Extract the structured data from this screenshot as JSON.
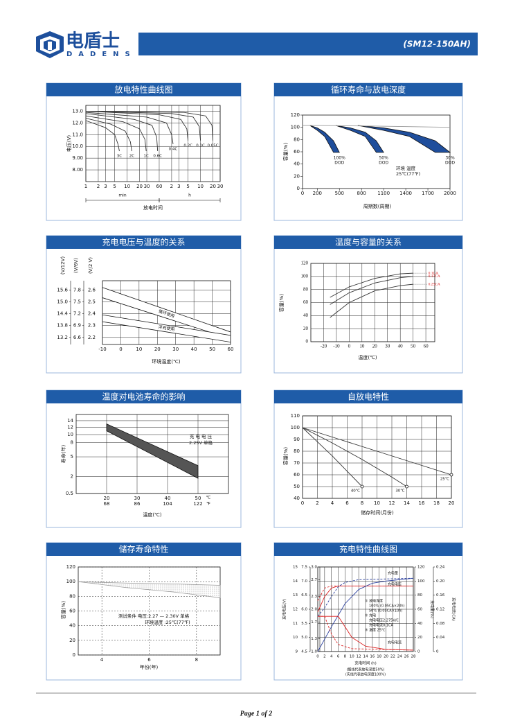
{
  "header": {
    "brand": "电盾士",
    "brand_en": "DADENS",
    "model": "(SM12-150AH)"
  },
  "panels": [
    {
      "title": "放电特性曲线图",
      "chart": {
        "type": "line",
        "ylabel": "电压(V)",
        "xlabel": "放电时间",
        "xscale": "log",
        "xlim": [
          1,
          1800
        ],
        "ylim": [
          7,
          13.5
        ],
        "grid": true,
        "color": "#333",
        "xunits": [
          "min",
          "h"
        ],
        "xticks": [
          1,
          2,
          3,
          5,
          10,
          20,
          30,
          60,
          {
            "value": 120,
            "label": "2"
          },
          {
            "value": 180,
            "label": "3"
          },
          {
            "value": 300,
            "label": "5"
          },
          {
            "value": 600,
            "label": "10"
          },
          {
            "value": 1200,
            "label": "20"
          },
          {
            "value": 1800,
            "label": "30"
          }
        ],
        "yticks": [
          {
            "value": 13,
            "label": "13.0"
          },
          {
            "value": 12,
            "label": "12.0"
          },
          {
            "value": 11,
            "label": "11.0"
          },
          {
            "value": 10,
            "label": "10.0"
          },
          {
            "value": 9,
            "label": "9.00"
          },
          {
            "value": 8,
            "label": "8.00"
          }
        ],
        "series": [
          {
            "name": "3C",
            "x": [
              1,
              3,
              5,
              6,
              6.5
            ],
            "values": [
              12.2,
              11.6,
              11.0,
              10.2,
              9.6
            ]
          },
          {
            "name": "2C",
            "x": [
              1,
              4,
              9,
              12,
              13
            ],
            "values": [
              12.4,
              11.9,
              11.3,
              10.4,
              9.6
            ]
          },
          {
            "name": "1C",
            "x": [
              1,
              8,
              20,
              27,
              29
            ],
            "values": [
              12.6,
              12.1,
              11.5,
              10.6,
              9.6
            ]
          },
          {
            "name": "0.6C",
            "x": [
              1,
              15,
              40,
              52,
              55
            ],
            "values": [
              12.8,
              12.3,
              11.8,
              10.8,
              9.6
            ]
          },
          {
            "name": "0.4C",
            "x": [
              1,
              30,
              90,
              120,
              130
            ],
            "values": [
              12.9,
              12.5,
              12.0,
              11.0,
              10.2
            ]
          },
          {
            "name": "0.2C",
            "x": [
              1,
              60,
              200,
              280,
              300
            ],
            "values": [
              13.0,
              12.7,
              12.3,
              11.5,
              10.5
            ]
          },
          {
            "name": "0.1C",
            "x": [
              1,
              120,
              400,
              560,
              600
            ],
            "values": [
              13.0,
              12.8,
              12.5,
              11.7,
              10.5
            ]
          },
          {
            "name": "0.05C",
            "x": [
              1,
              240,
              800,
              1140,
              1200
            ],
            "values": [
              13.0,
              12.9,
              12.6,
              11.8,
              10.5
            ]
          }
        ]
      }
    },
    {
      "title": "循环寿命与放电深度",
      "chart": {
        "type": "line",
        "ylabel": "容量(%)",
        "xlabel": "周期数(周期)",
        "xlim": [
          0,
          2000
        ],
        "ylim": [
          0,
          120
        ],
        "grid": false,
        "color": "#999",
        "xticks": [
          0,
          200,
          500,
          800,
          1100,
          1400,
          1700,
          2000
        ],
        "yticks": [
          0,
          20,
          40,
          60,
          80,
          100,
          120
        ],
        "notes": [
          "环境 温度",
          "25℃(77℉)"
        ],
        "series": [
          {
            "x": [
              0,
              200,
              1000,
              2000
            ],
            "values": [
              103,
              103,
              102,
              100
            ]
          }
        ],
        "bands": [
          {
            "label": [
              "100%",
              "DOD"
            ],
            "color": "#1f4e9c",
            "x": [
              100,
              200,
              300,
              420,
              500
            ],
            "upper": [
              103,
              99,
              92,
              78,
              59
            ],
            "lower": [
              103,
              95,
              85,
              59,
              59
            ]
          },
          {
            "label": [
              "50%",
              "DOD"
            ],
            "color": "#1f4e9c",
            "x": [
              450,
              650,
              850,
              1000,
              1100
            ],
            "upper": [
              103,
              99,
              92,
              78,
              59
            ],
            "lower": [
              103,
              95,
              85,
              59,
              59
            ]
          },
          {
            "label": [
              "30%",
              "DOD"
            ],
            "color": "#1f4e9c",
            "x": [
              750,
              1100,
              1450,
              1800,
              2000
            ],
            "upper": [
              103,
              99,
              92,
              78,
              59
            ],
            "lower": [
              103,
              95,
              85,
              59,
              59
            ]
          }
        ]
      }
    },
    {
      "title": "充电电压与温度的关系",
      "chart": {
        "type": "line",
        "ylabel": "(V/2 V)",
        "xlabel": "环境温度(℃)",
        "xlim": [
          -10,
          60
        ],
        "ylim": [
          2.14,
          2.68
        ],
        "grid": true,
        "color": "#333",
        "xticks": [
          -10,
          0,
          10,
          20,
          30,
          40,
          50,
          60
        ],
        "yticks": [
          2.6,
          2.5,
          2.4,
          2.3,
          2.2
        ],
        "y_axes": [
          {
            "label": "(V/12V)",
            "ylim": [
              12.84,
              16.08
            ],
            "yticks": [
              15.6,
              {
                "value": 15,
                "label": "15.0"
              },
              14.4,
              13.8,
              13.2
            ]
          },
          {
            "label": "(V/6V)",
            "ylim": [
              6.42,
              8.04
            ],
            "yticks": [
              7.8,
              7.5,
              7.2,
              6.9,
              6.6
            ]
          }
        ],
        "bands": [
          {
            "label": [
              "循环使用"
            ],
            "color": "#ffffff",
            "x": [
              -10,
              60
            ],
            "upper": [
              2.623,
              2.246
            ],
            "lower": [
              2.536,
              2.188
            ]
          },
          {
            "label": [
              "浮充使用"
            ],
            "color": "#ffffff",
            "x": [
              -10,
              60
            ],
            "upper": [
              2.391,
              2.217
            ],
            "lower": [
              2.333,
              2.16
            ]
          }
        ]
      }
    },
    {
      "title": "温度与容量的关系",
      "chart": {
        "type": "line",
        "ylabel": "容量(%)",
        "xlabel": "温度(℃)",
        "xlim": [
          -30,
          67
        ],
        "ylim": [
          0,
          120
        ],
        "grid": true,
        "color": "#333",
        "label_color": "#d22",
        "xticks": [
          -20,
          -10,
          0,
          10,
          20,
          30,
          40,
          50,
          60
        ],
        "yticks": [
          0,
          20,
          40,
          60,
          80,
          100,
          120
        ],
        "series": [
          {
            "name": "0.1CA",
            "x": [
              -15,
              0,
              20,
              40,
              50
            ],
            "values": [
              68,
              84,
              97,
              104,
              105
            ]
          },
          {
            "name": "0.17CA",
            "x": [
              -15,
              0,
              20,
              40,
              50
            ],
            "values": [
              57,
              75,
              90,
              98,
              100
            ]
          },
          {
            "name": "0.25CA",
            "x": [
              -15,
              0,
              20,
              40,
              50
            ],
            "values": [
              37,
              60,
              78,
              86,
              88
            ]
          }
        ]
      }
    },
    {
      "title": "温度对电池寿命的影响",
      "chart": {
        "type": "line",
        "ylabel": "寿命(年)",
        "xlabel": "温度(℃)",
        "yscale": "sqrt",
        "xlim": [
          10,
          60
        ],
        "ylim": [
          0.5,
          16
        ],
        "grid": true,
        "color": "#333",
        "xunits": [
          "℃",
          "℉"
        ],
        "xticks": [
          20,
          30,
          40,
          50
        ],
        "x2ticks": [
          68,
          86,
          104,
          122
        ],
        "yticks": [
          14,
          12,
          10,
          8,
          5,
          2,
          0.5
        ],
        "notes": [
          "充 电 电 压",
          "2.25V 单格"
        ],
        "bands": [
          {
            "color": "#555555",
            "x": [
              20,
              50
            ],
            "upper": [
              13,
              3.5
            ],
            "lower": [
              11,
              1.8
            ]
          }
        ]
      }
    },
    {
      "title": "自放电特性",
      "chart": {
        "type": "line",
        "ylabel": "容量(%)",
        "xlabel": "储存时间(月份)",
        "markers": true,
        "xlim": [
          0,
          20
        ],
        "ylim": [
          40,
          110
        ],
        "grid": true,
        "color": "#333",
        "xticks": [
          0,
          2,
          4,
          6,
          8,
          10,
          12,
          14,
          16,
          18,
          20
        ],
        "yticks": [
          40,
          50,
          60,
          70,
          80,
          90,
          100,
          110
        ],
        "series": [
          {
            "name": "40℃",
            "x": [
              0,
              2,
              4,
              6,
              8
            ],
            "values": [
              100,
              88,
              76,
              63,
              50
            ]
          },
          {
            "name": "30℃",
            "x": [
              0,
              4,
              8,
              12,
              14
            ],
            "values": [
              100,
              87,
              73,
              58,
              50
            ]
          },
          {
            "name": "25℃",
            "x": [
              0,
              5,
              10,
              15,
              20
            ],
            "values": [
              100,
              90,
              80,
              70,
              60
            ]
          }
        ]
      }
    },
    {
      "title": "储存寿命特性",
      "chart": {
        "type": "line",
        "ylabel": "容量(%)",
        "xlabel": "年份(年)",
        "grid": true,
        "xlim": [
          3,
          9
        ],
        "ylim": [
          0,
          120
        ],
        "color": "#333",
        "xticks": [
          4,
          6,
          8
        ],
        "yticks": [
          0,
          20,
          40,
          60,
          80,
          100,
          120
        ],
        "notes": [
          "测试条件 电压:2.27 — 2.30V 单格",
          "环境温度 :25℃(77℉)"
        ],
        "bands": [
          {
            "color": "#999999",
            "texture": "dots",
            "x": [
              3,
              5,
              7,
              9
            ],
            "upper": [
              100,
              98,
              97,
              95
            ],
            "lower": [
              100,
              92,
              86,
              78
            ]
          }
        ]
      }
    },
    {
      "title": "充电特性曲线图",
      "chart": {
        "type": "line",
        "ylabel": "充电电压(V)",
        "xlabel": "充电时间 (h)",
        "grid": true,
        "xlim": [
          0,
          28
        ],
        "ylim": [
          9,
          15
        ],
        "color": "#333",
        "xticks": [
          0,
          2,
          4,
          6,
          8,
          10,
          12,
          14,
          16,
          18,
          20,
          22,
          24,
          26,
          28
        ],
        "yticks": [
          15,
          14,
          13,
          12,
          11,
          10,
          9
        ],
        "y_axes": [
          {
            "ylim": [
              4.5,
              7.5
            ],
            "yticks": [
              7.5,
              {
                "value": 7,
                "label": "7.0"
              },
              6.5,
              {
                "value": 6,
                "label": "6.0"
              },
              5.5,
              {
                "value": 5,
                "label": "5.0"
              },
              4.5
            ]
          },
          {
            "ylim": [
              1,
              3
            ],
            "yticks": [
              {
                "value": 3,
                "label": "3.0"
              },
              2.7,
              2.3,
              {
                "value": 2,
                "label": "2.0"
              },
              1.7,
              1.3,
              {
                "value": 1,
                "label": "1.0"
              }
            ]
          },
          {
            "label": "充电量(%)",
            "ylim": [
              0,
              120
            ],
            "yticks": [
              120,
              100,
              80,
              60,
              40,
              20,
              0
            ]
          },
          {
            "label": "充电电流(CA)",
            "ylim": [
              0,
              0.24
            ],
            "yticks": [
              0.24,
              {
                "value": 0.2,
                "label": "0.20"
              },
              0.16,
              0.12,
              0.08,
              0.04,
              0
            ]
          }
        ],
        "notes": [
          "充电量",
          "充电电压",
          "充电电流",
          "① 放电深度",
          "100% (0.05CA×20h)",
          "50% (0.05CA×10h)",
          "② 充电",
          "充电电压2.275V/C",
          "充电电流0.1CA",
          "③ 温度 25℃",
          "(细线代表放电深度50%)",
          "(实线代表放电深度100%)"
        ],
        "series": [
          {
            "color": "#d22",
            "x": [
              0,
              2,
              4,
              6,
              8,
              28
            ],
            "values": [
              11.8,
              12.9,
              13.5,
              13.65,
              13.65,
              13.65
            ]
          },
          {
            "color": "#d22",
            "dash": true,
            "x": [
              0,
              2,
              4,
              28
            ],
            "values": [
              12.6,
              13.5,
              13.65,
              13.65
            ]
          },
          {
            "color": "#2a3f9e",
            "axis": 2,
            "x": [
              0,
              4,
              8,
              12,
              16,
              20,
              28
            ],
            "values": [
              0,
              35,
              68,
              88,
              97,
              100,
              104
            ]
          },
          {
            "color": "#2a3f9e",
            "axis": 2,
            "dash": true,
            "x": [
              0,
              2,
              4,
              6,
              8,
              12,
              28
            ],
            "values": [
              50,
              62,
              78,
              92,
              98,
              102,
              104
            ]
          },
          {
            "color": "#d22",
            "axis": 3,
            "x": [
              0,
              6,
              8,
              10,
              14,
              20,
              28
            ],
            "values": [
              0.1,
              0.1,
              0.07,
              0.04,
              0.015,
              0.006,
              0.004
            ]
          },
          {
            "color": "#d22",
            "axis": 3,
            "dash": true,
            "x": [
              0,
              2,
              4,
              6,
              10,
              28
            ],
            "values": [
              0.1,
              0.1,
              0.05,
              0.02,
              0.008,
              0.004
            ]
          }
        ]
      }
    }
  ],
  "footer": {
    "page": "Page 1 of 2"
  }
}
